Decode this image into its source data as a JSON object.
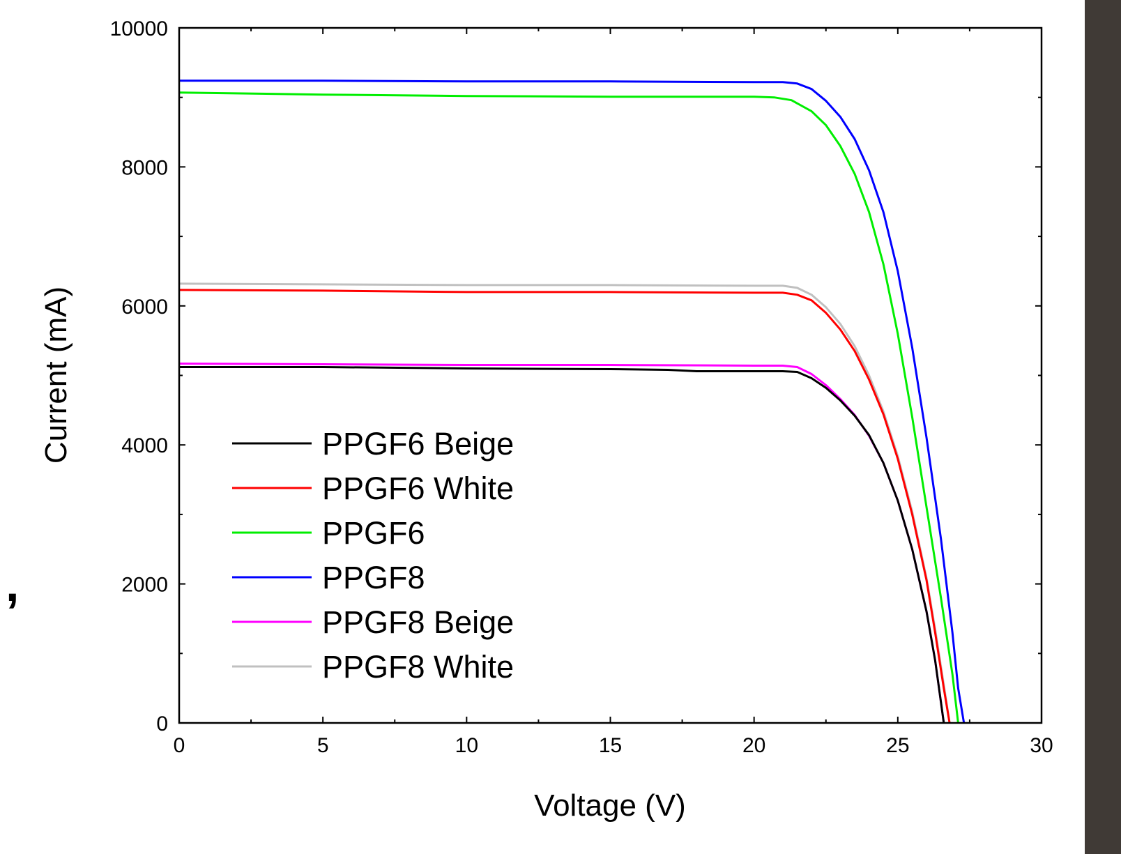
{
  "stray_mark": ",",
  "chart_data": {
    "type": "line",
    "title": "",
    "xlabel": "Voltage (V)",
    "ylabel": "Current (mA)",
    "xlim": [
      0,
      30
    ],
    "ylim": [
      0,
      10000
    ],
    "xticks": [
      0,
      5,
      10,
      15,
      20,
      25,
      30
    ],
    "yticks": [
      0,
      2000,
      4000,
      6000,
      8000,
      10000
    ],
    "grid": false,
    "legend_position": "bottom-left",
    "series": [
      {
        "name": "PPGF6 Beige",
        "color": "#000000",
        "points": [
          [
            0,
            5120
          ],
          [
            5,
            5120
          ],
          [
            10,
            5100
          ],
          [
            15,
            5090
          ],
          [
            17,
            5080
          ],
          [
            18,
            5060
          ],
          [
            20,
            5060
          ],
          [
            21,
            5060
          ],
          [
            21.5,
            5050
          ],
          [
            22,
            4960
          ],
          [
            22.5,
            4820
          ],
          [
            23,
            4640
          ],
          [
            23.5,
            4420
          ],
          [
            24,
            4140
          ],
          [
            24.5,
            3740
          ],
          [
            25,
            3200
          ],
          [
            25.5,
            2500
          ],
          [
            26,
            1600
          ],
          [
            26.3,
            900
          ],
          [
            26.5,
            300
          ],
          [
            26.6,
            0
          ]
        ]
      },
      {
        "name": "PPGF6 White",
        "color": "#ff0000",
        "points": [
          [
            0,
            6230
          ],
          [
            5,
            6220
          ],
          [
            10,
            6200
          ],
          [
            15,
            6200
          ],
          [
            20,
            6190
          ],
          [
            21,
            6190
          ],
          [
            21.5,
            6160
          ],
          [
            22,
            6080
          ],
          [
            22.5,
            5900
          ],
          [
            23,
            5660
          ],
          [
            23.5,
            5350
          ],
          [
            24,
            4940
          ],
          [
            24.5,
            4440
          ],
          [
            25,
            3800
          ],
          [
            25.5,
            3000
          ],
          [
            26,
            2050
          ],
          [
            26.3,
            1300
          ],
          [
            26.6,
            500
          ],
          [
            26.8,
            0
          ]
        ]
      },
      {
        "name": "PPGF6",
        "color": "#00ee00",
        "points": [
          [
            0,
            9070
          ],
          [
            5,
            9040
          ],
          [
            10,
            9020
          ],
          [
            15,
            9010
          ],
          [
            20,
            9010
          ],
          [
            20.7,
            9000
          ],
          [
            21.3,
            8960
          ],
          [
            22,
            8800
          ],
          [
            22.5,
            8600
          ],
          [
            23,
            8300
          ],
          [
            23.5,
            7900
          ],
          [
            24,
            7350
          ],
          [
            24.5,
            6600
          ],
          [
            25,
            5600
          ],
          [
            25.5,
            4400
          ],
          [
            26,
            3100
          ],
          [
            26.5,
            1800
          ],
          [
            26.9,
            700
          ],
          [
            27.1,
            0
          ]
        ]
      },
      {
        "name": "PPGF8",
        "color": "#0000ff",
        "points": [
          [
            0,
            9240
          ],
          [
            5,
            9240
          ],
          [
            10,
            9230
          ],
          [
            15,
            9230
          ],
          [
            20,
            9220
          ],
          [
            21,
            9220
          ],
          [
            21.5,
            9200
          ],
          [
            22,
            9120
          ],
          [
            22.5,
            8950
          ],
          [
            23,
            8720
          ],
          [
            23.5,
            8400
          ],
          [
            24,
            7950
          ],
          [
            24.5,
            7350
          ],
          [
            25,
            6500
          ],
          [
            25.5,
            5400
          ],
          [
            26,
            4100
          ],
          [
            26.5,
            2650
          ],
          [
            26.9,
            1300
          ],
          [
            27.1,
            500
          ],
          [
            27.3,
            0
          ]
        ]
      },
      {
        "name": "PPGF8 Beige",
        "color": "#ff00ff",
        "points": [
          [
            0,
            5170
          ],
          [
            5,
            5160
          ],
          [
            10,
            5150
          ],
          [
            15,
            5150
          ],
          [
            20,
            5140
          ],
          [
            21,
            5140
          ],
          [
            21.5,
            5120
          ],
          [
            22,
            5020
          ],
          [
            22.5,
            4860
          ],
          [
            23,
            4660
          ],
          [
            23.5,
            4430
          ],
          [
            24,
            4130
          ],
          [
            24.5,
            3740
          ],
          [
            25,
            3200
          ],
          [
            25.5,
            2500
          ],
          [
            26,
            1600
          ],
          [
            26.3,
            900
          ],
          [
            26.5,
            300
          ],
          [
            26.6,
            0
          ]
        ]
      },
      {
        "name": "PPGF8 White",
        "color": "#c0c0c0",
        "points": [
          [
            0,
            6320
          ],
          [
            5,
            6310
          ],
          [
            10,
            6300
          ],
          [
            15,
            6300
          ],
          [
            20,
            6290
          ],
          [
            21,
            6290
          ],
          [
            21.5,
            6260
          ],
          [
            22,
            6160
          ],
          [
            22.5,
            5980
          ],
          [
            23,
            5740
          ],
          [
            23.5,
            5420
          ],
          [
            24,
            5000
          ],
          [
            24.5,
            4480
          ],
          [
            25,
            3840
          ],
          [
            25.5,
            3040
          ],
          [
            26,
            2080
          ],
          [
            26.3,
            1350
          ],
          [
            26.6,
            550
          ],
          [
            26.8,
            0
          ]
        ]
      }
    ]
  },
  "colors": {
    "background": "#ffffff",
    "axes": "#000000",
    "right_bar": "#403a36"
  }
}
